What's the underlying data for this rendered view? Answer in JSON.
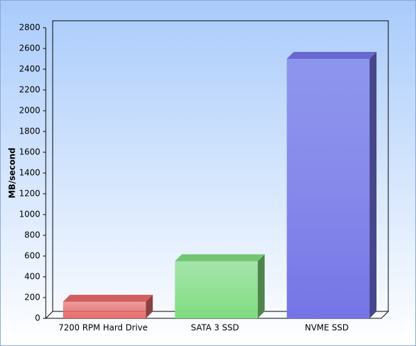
{
  "chart_data": {
    "type": "bar3d",
    "y_label": "MB/second",
    "categories": [
      "7200 RPM Hard Drive",
      "SATA 3 SSD",
      "NVME SSD"
    ],
    "values": [
      160,
      550,
      2500
    ],
    "colors": [
      "#e86a6a",
      "#7fdc7f",
      "#7474e6"
    ],
    "ylim": [
      0,
      2800
    ],
    "yticks": [
      0,
      200,
      400,
      600,
      800,
      1000,
      1200,
      1400,
      1600,
      1800,
      2000,
      2200,
      2400,
      2600,
      2800
    ]
  }
}
